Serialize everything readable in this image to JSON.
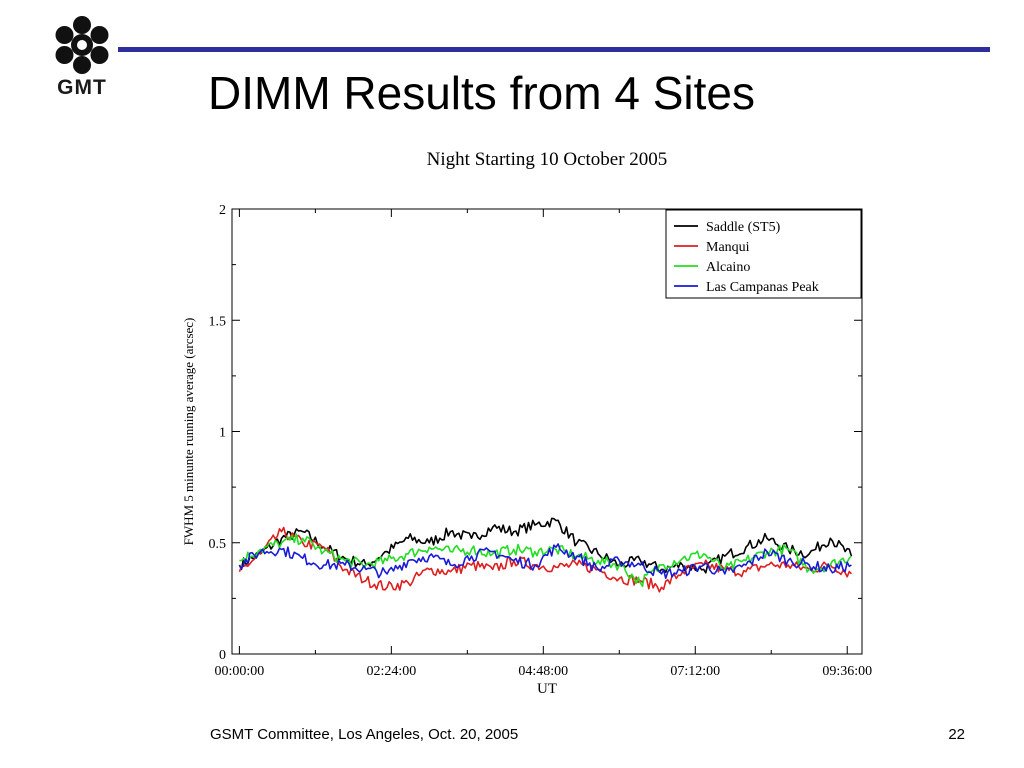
{
  "logo": {
    "text": "GMT"
  },
  "slide": {
    "title": "DIMM Results from 4 Sites",
    "footer": "GSMT Committee, Los Angeles, Oct. 20, 2005",
    "page_number": "22"
  },
  "colors": {
    "rule": "#2e2f9c"
  },
  "chart_data": {
    "type": "line",
    "title": "Night Starting 10 October 2005",
    "xlabel": "UT",
    "ylabel": "FWHM 5 minunte running average (arcsec)",
    "xlim": [
      "-00:07:00",
      "09:50:00"
    ],
    "ylim": [
      0,
      2
    ],
    "x_ticks": [
      "00:00:00",
      "02:24:00",
      "04:48:00",
      "07:12:00",
      "09:36:00"
    ],
    "y_ticks": [
      "0",
      "0.5",
      "1",
      "1.5",
      "2"
    ],
    "grid": false,
    "legend_position": "top-right",
    "x": [
      "00:00:00",
      "00:20:00",
      "00:40:00",
      "01:00:00",
      "01:20:00",
      "01:40:00",
      "02:00:00",
      "02:20:00",
      "02:40:00",
      "03:00:00",
      "03:20:00",
      "03:40:00",
      "04:00:00",
      "04:20:00",
      "04:40:00",
      "05:00:00",
      "05:20:00",
      "05:40:00",
      "06:00:00",
      "06:20:00",
      "06:40:00",
      "07:00:00",
      "07:20:00",
      "07:40:00",
      "08:00:00",
      "08:20:00",
      "08:40:00",
      "09:00:00",
      "09:20:00",
      "09:40:00"
    ],
    "series": [
      {
        "name": "Saddle (ST5)",
        "color": "#000000",
        "values": [
          0.4,
          0.45,
          0.52,
          0.55,
          0.48,
          0.43,
          0.4,
          0.46,
          0.52,
          0.5,
          0.55,
          0.52,
          0.57,
          0.55,
          0.58,
          0.6,
          0.5,
          0.45,
          0.4,
          0.42,
          0.38,
          0.4,
          0.38,
          0.44,
          0.48,
          0.52,
          0.47,
          0.45,
          0.52,
          0.44
        ]
      },
      {
        "name": "Manqui",
        "color": "#dd1f1f",
        "values": [
          0.37,
          0.45,
          0.55,
          0.5,
          0.48,
          0.38,
          0.33,
          0.3,
          0.32,
          0.38,
          0.37,
          0.4,
          0.38,
          0.42,
          0.4,
          0.39,
          0.4,
          0.38,
          0.34,
          0.33,
          0.3,
          0.37,
          0.4,
          0.38,
          0.37,
          0.4,
          0.4,
          0.38,
          0.4,
          0.36
        ]
      },
      {
        "name": "Alcaino",
        "color": "#22dd22",
        "values": [
          0.42,
          0.47,
          0.5,
          0.52,
          0.46,
          0.42,
          0.4,
          0.42,
          0.45,
          0.48,
          0.46,
          0.47,
          0.45,
          0.47,
          0.46,
          0.47,
          0.44,
          0.42,
          0.4,
          0.32,
          0.4,
          0.43,
          0.45,
          0.38,
          0.42,
          0.46,
          0.47,
          0.38,
          0.4,
          0.44
        ]
      },
      {
        "name": "Las Campanas Peak",
        "color": "#1a1ad6",
        "values": [
          0.4,
          0.46,
          0.47,
          0.43,
          0.4,
          0.4,
          0.38,
          0.36,
          0.42,
          0.44,
          0.4,
          0.44,
          0.46,
          0.42,
          0.4,
          0.48,
          0.44,
          0.38,
          0.42,
          0.4,
          0.36,
          0.37,
          0.4,
          0.36,
          0.4,
          0.46,
          0.42,
          0.4,
          0.38,
          0.4
        ]
      }
    ]
  }
}
